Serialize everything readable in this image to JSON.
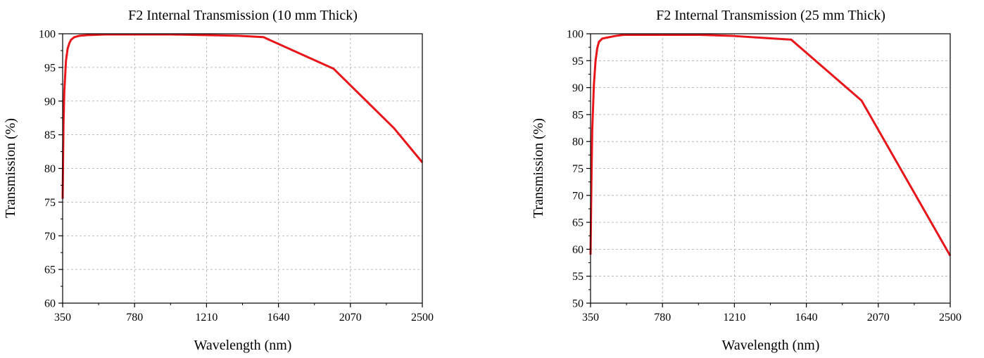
{
  "chart_data": [
    {
      "type": "line",
      "title": "F2 Internal Transmission (10 mm Thick)",
      "xlabel": "Wavelength (nm)",
      "ylabel": "Transmission (%)",
      "xlim": [
        350,
        2500
      ],
      "ylim": [
        60,
        100
      ],
      "xticks": [
        350,
        780,
        1210,
        1640,
        2070,
        2500
      ],
      "yticks": [
        60,
        65,
        70,
        75,
        80,
        85,
        90,
        95,
        100
      ],
      "grid": true,
      "series_color": "#e8161b",
      "series": [
        {
          "x": [
            350,
            355,
            360,
            370,
            380,
            390,
            400,
            420,
            450,
            500,
            600,
            700,
            800,
            1000,
            1200,
            1400,
            1550,
            1970,
            2330,
            2500
          ],
          "y": [
            75.5,
            86.5,
            91.5,
            96.0,
            97.8,
            98.6,
            99.1,
            99.5,
            99.7,
            99.8,
            99.9,
            99.9,
            99.9,
            99.9,
            99.8,
            99.7,
            99.5,
            94.8,
            86.0,
            80.9
          ]
        }
      ]
    },
    {
      "type": "line",
      "title": "F2 Internal Transmission (25 mm Thick)",
      "xlabel": "Wavelength (nm)",
      "ylabel": "Transmission (%)",
      "xlim": [
        350,
        2500
      ],
      "ylim": [
        50,
        100
      ],
      "xticks": [
        350,
        780,
        1210,
        1640,
        2070,
        2500
      ],
      "yticks": [
        50,
        55,
        60,
        65,
        70,
        75,
        80,
        85,
        90,
        95,
        100
      ],
      "grid": true,
      "series_color": "#e8161b",
      "series": [
        {
          "x": [
            350,
            355,
            360,
            370,
            380,
            390,
            400,
            420,
            450,
            500,
            550,
            600,
            700,
            800,
            1000,
            1200,
            1400,
            1550,
            1970,
            2500
          ],
          "y": [
            59.0,
            72.0,
            82.0,
            90.5,
            95.0,
            97.3,
            98.5,
            99.1,
            99.3,
            99.6,
            99.8,
            99.8,
            99.8,
            99.8,
            99.8,
            99.6,
            99.2,
            98.9,
            87.6,
            58.8
          ]
        }
      ]
    }
  ]
}
